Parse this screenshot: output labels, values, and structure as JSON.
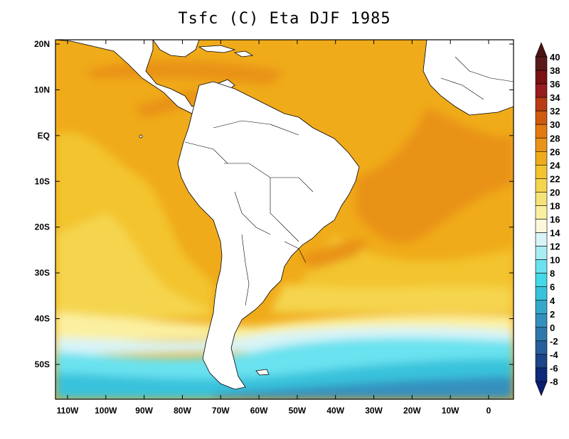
{
  "title": "Tsfc (C) Eta DJF 1985",
  "map": {
    "lon_ticks": [
      "110W",
      "100W",
      "90W",
      "80W",
      "70W",
      "60W",
      "50W",
      "40W",
      "30W",
      "20W",
      "10W",
      "0"
    ],
    "lat_ticks": [
      "20N",
      "10N",
      "EQ",
      "10S",
      "20S",
      "30S",
      "40S",
      "50S"
    ]
  },
  "colorbar": {
    "labels": [
      "40",
      "38",
      "36",
      "34",
      "32",
      "30",
      "28",
      "26",
      "24",
      "22",
      "20",
      "18",
      "16",
      "14",
      "12",
      "10",
      "8",
      "6",
      "4",
      "2",
      "0",
      "-2",
      "-4",
      "-6",
      "-8"
    ],
    "colors": [
      "#5a1a1a",
      "#7a1212",
      "#961e1e",
      "#b83c14",
      "#cf5b10",
      "#e27a12",
      "#e99318",
      "#f0ab1a",
      "#f3c42e",
      "#f5d54e",
      "#f7e278",
      "#fbf0a0",
      "#fdf7dc",
      "#d8f4f8",
      "#a8ecf4",
      "#6ae2ef",
      "#44d8e8",
      "#38c2dc",
      "#36a8cc",
      "#3490be",
      "#2f78ae",
      "#265e9c",
      "#1c448a",
      "#0e2a78"
    ]
  },
  "colors": {
    "land": "#ffffff",
    "ocean_warm": "#f0ab1a",
    "ocean_hot": "#e99318",
    "ocean_mid": "#f3c42e",
    "ocean_cool": "#f7e278",
    "cold_1": "#d8f4f8",
    "cold_2": "#6ae2ef",
    "cold_3": "#38c2dc",
    "cold_4": "#3490be"
  }
}
